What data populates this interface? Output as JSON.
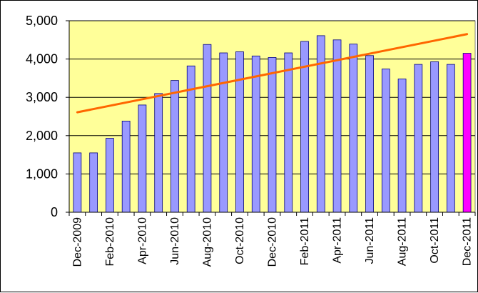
{
  "chart_data": {
    "type": "bar",
    "title": "",
    "xlabel": "",
    "ylabel": "",
    "ylim": [
      0,
      5000
    ],
    "y_ticks": [
      0,
      1000,
      2000,
      3000,
      4000,
      5000
    ],
    "y_tick_labels": [
      "0",
      "1,000",
      "2,000",
      "3,000",
      "4,000",
      "5,000"
    ],
    "grid": true,
    "legend": "none",
    "categories": [
      "Dec-2009",
      "Jan-2010",
      "Feb-2010",
      "Mar-2010",
      "Apr-2010",
      "May-2010",
      "Jun-2010",
      "Jul-2010",
      "Aug-2010",
      "Sep-2010",
      "Oct-2010",
      "Nov-2010",
      "Dec-2010",
      "Jan-2011",
      "Feb-2011",
      "Mar-2011",
      "Apr-2011",
      "May-2011",
      "Jun-2011",
      "Jul-2011",
      "Aug-2011",
      "Sep-2011",
      "Oct-2011",
      "Nov-2011",
      "Dec-2011"
    ],
    "shown_category_labels": [
      "Dec-2009",
      "Feb-2010",
      "Apr-2010",
      "Jun-2010",
      "Aug-2010",
      "Oct-2010",
      "Dec-2010",
      "Feb-2011",
      "Apr-2011",
      "Jun-2011",
      "Aug-2011",
      "Oct-2011",
      "Dec-2011"
    ],
    "series": [
      {
        "values": [
          1550,
          1550,
          1930,
          2380,
          2800,
          3100,
          3440,
          3820,
          4380,
          4160,
          4190,
          4080,
          4040,
          4160,
          4460,
          4610,
          4500,
          4390,
          4090,
          3740,
          3480,
          3860,
          3930,
          3860,
          4150
        ]
      }
    ],
    "trendline": {
      "type": "linear",
      "start": 2610,
      "end": 4650
    },
    "colors": {
      "plot_background": "#ffff99",
      "bar_fill": "#9999ff",
      "bar_stroke": "#000080",
      "highlight_bar_fill": "#ff00ff",
      "trendline": "#ff6600",
      "gridline": "#000000"
    },
    "highlight_index": 24
  }
}
